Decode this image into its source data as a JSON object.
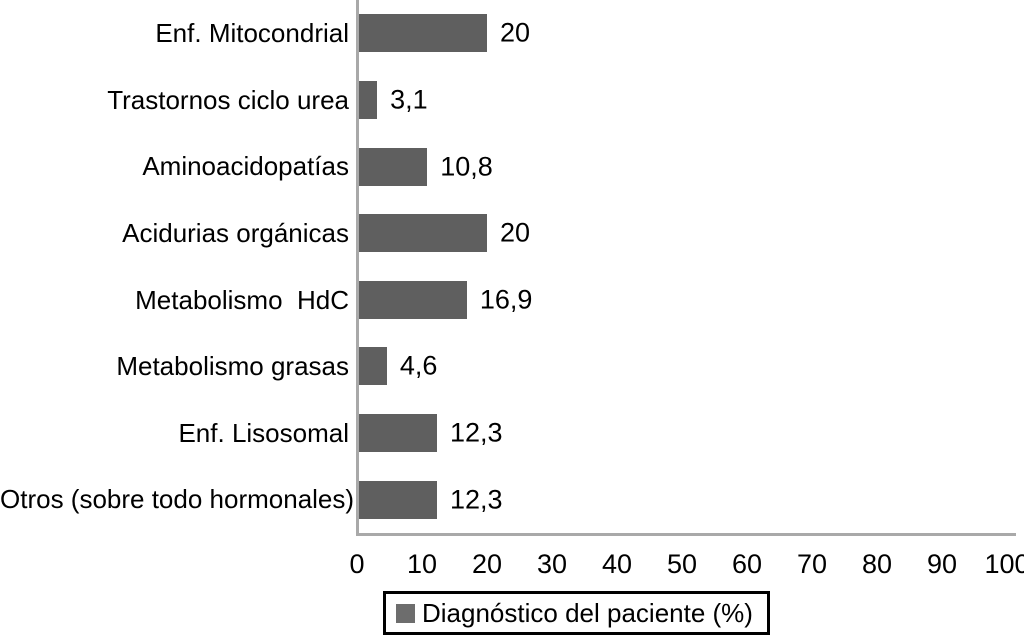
{
  "chart_data": {
    "type": "bar",
    "orientation": "horizontal",
    "title": "",
    "xlabel": "",
    "ylabel": "",
    "grid": false,
    "categories": [
      "Enf. Mitocondrial",
      "Trastornos ciclo urea",
      "Aminoacidopatías",
      "Acidurias orgánicas",
      "Metabolismo  HdC",
      "Metabolismo grasas",
      "Enf. Lisosomal",
      "Otros (sobre todo hormonales)"
    ],
    "values": [
      20,
      3.1,
      10.8,
      20,
      16.9,
      4.6,
      12.3,
      12.3
    ],
    "value_labels": [
      "20",
      "3,1",
      "10,8",
      "20",
      "16,9",
      "4,6",
      "12,3",
      "12,3"
    ],
    "xlim": [
      0,
      100
    ],
    "x_ticks": [
      "0",
      "10",
      "20",
      "30",
      "40",
      "50",
      "60",
      "70",
      "80",
      "90",
      "100"
    ],
    "legend": {
      "label": "Diagnóstico del paciente (%)",
      "position": "bottom"
    },
    "colors": {
      "bar": "#5f5f5f",
      "legend_marker": "#6d6d6d",
      "axis_line": "#a9a9a9",
      "text": "#000000",
      "background": "#ffffff"
    }
  }
}
